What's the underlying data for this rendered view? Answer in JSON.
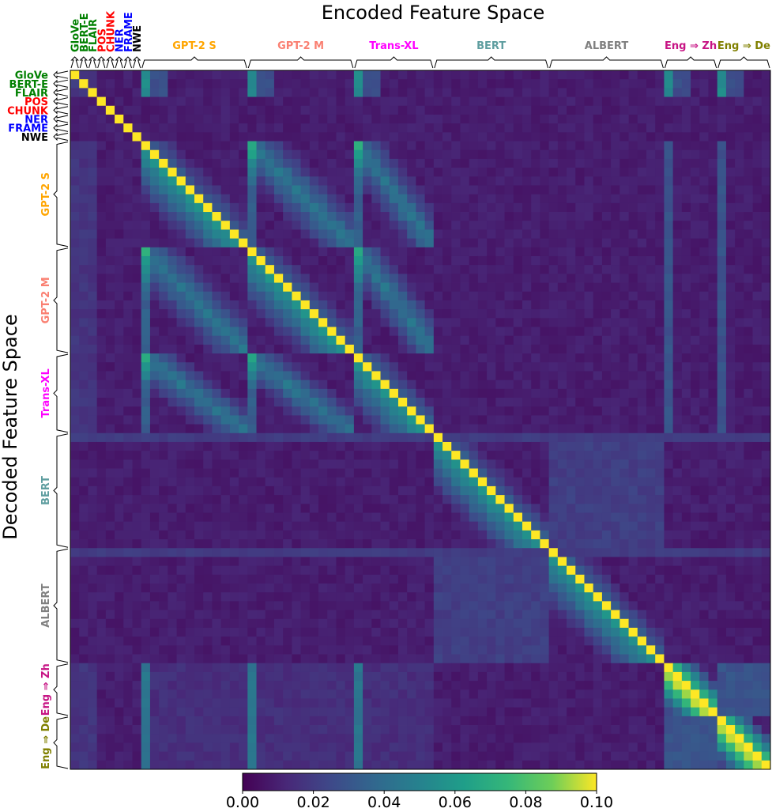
{
  "chart_data": {
    "type": "heatmap",
    "title": "Encoded Feature Space",
    "xlabel": "Encoded Feature Space",
    "ylabel": "Decoded Feature Space",
    "colormap": "viridis",
    "color_range": [
      0.0,
      0.1
    ],
    "colorbar_ticks": [
      "0.00",
      "0.02",
      "0.04",
      "0.06",
      "0.08",
      "0.10"
    ],
    "groups": [
      {
        "name": "GloVe",
        "color": "#008000",
        "size": 1
      },
      {
        "name": "BERT-E",
        "color": "#008000",
        "size": 1
      },
      {
        "name": "FLAIR",
        "color": "#008000",
        "size": 1
      },
      {
        "name": "POS",
        "color": "#ff0000",
        "size": 1
      },
      {
        "name": "CHUNK",
        "color": "#ff0000",
        "size": 1
      },
      {
        "name": "NER",
        "color": "#0000ff",
        "size": 1
      },
      {
        "name": "FRAME",
        "color": "#0000ff",
        "size": 1
      },
      {
        "name": "NWE",
        "color": "#000000",
        "size": 1
      },
      {
        "name": "GPT-2 S",
        "color": "#ffa500",
        "size": 12
      },
      {
        "name": "GPT-2 M",
        "color": "#fa8072",
        "size": 12
      },
      {
        "name": "Trans-XL",
        "color": "#ff00ff",
        "size": 9
      },
      {
        "name": "BERT",
        "color": "#5f9ea0",
        "size": 13
      },
      {
        "name": "ALBERT",
        "color": "#808080",
        "size": 13
      },
      {
        "name": "Eng ⇒ Zh",
        "color": "#c71585",
        "size": 6
      },
      {
        "name": "Eng ⇒ De",
        "color": "#808000",
        "size": 6
      }
    ],
    "diagonal_value": 0.1,
    "notes": "Diagonal cells equal 0.10; lower-triangle bands within GPT-2, Trans-XL, BERT and translation groups reach 0.04–0.08; GloVe/BERT-E/FLAIR columns show 0.04–0.06 near the first GPT-2 and Eng⇒Zh columns; background 0.00–0.02."
  }
}
